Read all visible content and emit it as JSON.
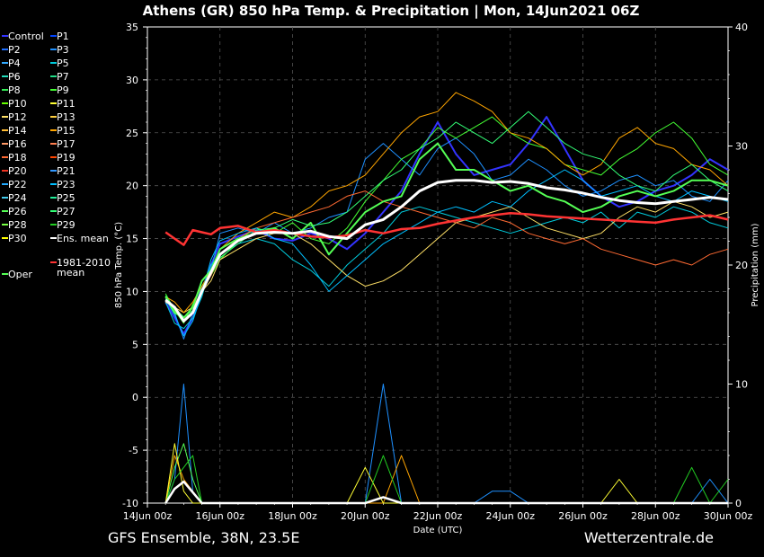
{
  "chart_data": {
    "type": "line",
    "title": "Athens  (GR)  850 hPa Temp. & Precipitation | Mon, 14Jun2021 06Z",
    "xlabel": "Date (UTC)",
    "ylabel": "850 hPa Temp. (°C)",
    "y2label": "Precipitation (mm)",
    "ylim": [
      -10,
      35
    ],
    "y2lim": [
      0,
      40
    ],
    "yticks": [
      "35",
      "30",
      "25",
      "20",
      "15",
      "10",
      "5",
      "0",
      "-5",
      "-10"
    ],
    "y2ticks": [
      "40",
      "30",
      "20",
      "10",
      "0"
    ],
    "xticks": [
      "14Jun 00z",
      "16Jun 00z",
      "18Jun 00z",
      "20Jun 00z",
      "22Jun 00z",
      "24Jun 00z",
      "26Jun 00z",
      "28Jun 00z",
      "30Jun 00z"
    ],
    "grid": true,
    "legend_position": "left",
    "legend": [
      {
        "label": "Control",
        "color": "#3333ff"
      },
      {
        "label": "P1",
        "color": "#0044ff"
      },
      {
        "label": "P2",
        "color": "#1f6fff"
      },
      {
        "label": "P3",
        "color": "#1e90ff"
      },
      {
        "label": "P4",
        "color": "#33aaff"
      },
      {
        "label": "P5",
        "color": "#00ccdd"
      },
      {
        "label": "P6",
        "color": "#22ddbb"
      },
      {
        "label": "P7",
        "color": "#22dd88"
      },
      {
        "label": "P8",
        "color": "#33ee55"
      },
      {
        "label": "P9",
        "color": "#44ff33"
      },
      {
        "label": "P10",
        "color": "#66ff00"
      },
      {
        "label": "P11",
        "color": "#ffff33"
      },
      {
        "label": "P12",
        "color": "#ffe066"
      },
      {
        "label": "P13",
        "color": "#ffd040"
      },
      {
        "label": "P14",
        "color": "#ffbb33"
      },
      {
        "label": "P15",
        "color": "#ffa500"
      },
      {
        "label": "P16",
        "color": "#ff9966"
      },
      {
        "label": "P17",
        "color": "#ff7f50"
      },
      {
        "label": "P18",
        "color": "#ff6a33"
      },
      {
        "label": "P19",
        "color": "#ff4500"
      },
      {
        "label": "P20",
        "color": "#ee3322"
      },
      {
        "label": "P21",
        "color": "#3399ff"
      },
      {
        "label": "P22",
        "color": "#22aaff"
      },
      {
        "label": "P23",
        "color": "#00bfff"
      },
      {
        "label": "P24",
        "color": "#44ccee"
      },
      {
        "label": "P25",
        "color": "#22ee99"
      },
      {
        "label": "P26",
        "color": "#55ff55"
      },
      {
        "label": "P27",
        "color": "#33ff77"
      },
      {
        "label": "P28",
        "color": "#77ff44"
      },
      {
        "label": "P29",
        "color": "#22cc22"
      },
      {
        "label": "P30",
        "color": "#ffff00"
      },
      {
        "label": "Ens. mean",
        "color": "#ffffff"
      },
      {
        "label": "1981-2010",
        "label2": "mean",
        "color": "#ff3333"
      },
      {
        "label": "Oper",
        "color": "#55ff55"
      }
    ],
    "x_days": [
      0.5,
      0.75,
      1,
      1.25,
      1.5,
      1.75,
      2,
      2.5,
      3,
      3.5,
      4,
      4.5,
      5,
      5.5,
      6,
      6.5,
      7,
      7.5,
      8,
      8.5,
      9,
      9.5,
      10,
      10.5,
      11,
      11.5,
      12,
      12.5,
      13,
      13.5,
      14,
      14.5,
      15,
      15.5,
      16
    ],
    "series": [
      {
        "name": "Ens. mean",
        "color": "#ffffff",
        "values": [
          9.2,
          8.5,
          7.2,
          8.0,
          10.0,
          11.8,
          13.5,
          14.8,
          15.5,
          15.6,
          15.5,
          15.7,
          15.2,
          15.0,
          16.3,
          16.8,
          18.0,
          19.5,
          20.3,
          20.5,
          20.5,
          20.3,
          20.4,
          20.2,
          19.8,
          19.6,
          19.3,
          18.9,
          18.6,
          18.4,
          18.3,
          18.5,
          18.7,
          18.9,
          18.7
        ]
      },
      {
        "name": "1981-2010 mean",
        "color": "#ff3333",
        "values": [
          15.6,
          15.0,
          14.4,
          15.8,
          15.6,
          15.4,
          16.0,
          16.2,
          15.6,
          15.8,
          15.5,
          15.2,
          15.1,
          15.3,
          15.8,
          15.5,
          15.9,
          16.0,
          16.4,
          16.7,
          17.0,
          17.2,
          17.4,
          17.3,
          17.1,
          17.0,
          16.9,
          16.8,
          16.7,
          16.6,
          16.5,
          16.8,
          17.0,
          17.2,
          16.8
        ]
      },
      {
        "name": "Oper",
        "color": "#55ff55",
        "values": [
          9.5,
          8.0,
          7.5,
          8.5,
          11.0,
          12.0,
          14.0,
          15.0,
          15.5,
          16.0,
          15.0,
          16.5,
          13.5,
          15.5,
          17.5,
          18.5,
          19.0,
          22.5,
          24.0,
          21.5,
          21.5,
          20.5,
          19.5,
          20.0,
          19.0,
          18.5,
          17.5,
          18.0,
          19.0,
          19.5,
          19.0,
          19.5,
          20.5,
          20.5,
          20.0
        ]
      },
      {
        "name": "Control",
        "color": "#3333ff",
        "values": [
          9.0,
          7.5,
          6.0,
          7.5,
          10.0,
          12.5,
          14.5,
          15.2,
          15.8,
          15.0,
          14.8,
          15.5,
          15.0,
          14.0,
          15.5,
          17.5,
          19.5,
          23.0,
          26.0,
          23.0,
          21.0,
          21.5,
          22.0,
          24.0,
          26.5,
          23.5,
          20.5,
          19.0,
          18.0,
          18.5,
          19.5,
          20.0,
          21.0,
          22.5,
          21.5
        ]
      },
      {
        "name": "P3",
        "color": "#1e90ff",
        "values": [
          9.5,
          8.0,
          5.5,
          8.0,
          10.5,
          12.0,
          15.5,
          16.0,
          15.5,
          16.5,
          15.5,
          16.0,
          17.0,
          17.5,
          22.5,
          24.0,
          22.5,
          21.0,
          23.5,
          24.5,
          23.0,
          20.5,
          21.0,
          22.5,
          21.5,
          20.0,
          19.0,
          19.5,
          20.5,
          21.0,
          20.0,
          20.5,
          19.0,
          18.5,
          20.5
        ]
      },
      {
        "name": "P5",
        "color": "#00ccdd",
        "values": [
          9.0,
          7.0,
          6.5,
          7.5,
          9.5,
          12.5,
          13.5,
          14.5,
          15.0,
          14.5,
          13.0,
          12.0,
          10.5,
          12.5,
          14.0,
          15.5,
          17.5,
          18.0,
          17.5,
          17.0,
          16.5,
          16.0,
          15.5,
          16.0,
          16.5,
          17.0,
          16.5,
          17.5,
          16.0,
          17.5,
          17.0,
          18.0,
          17.5,
          16.5,
          16.0
        ]
      },
      {
        "name": "P9",
        "color": "#44ff33",
        "values": [
          9.8,
          8.2,
          7.0,
          8.8,
          10.5,
          11.5,
          13.0,
          14.8,
          16.0,
          15.5,
          16.5,
          15.0,
          14.5,
          16.0,
          18.5,
          20.5,
          22.5,
          23.5,
          25.5,
          24.5,
          25.5,
          26.5,
          25.0,
          24.0,
          23.5,
          22.0,
          21.5,
          21.0,
          22.5,
          23.5,
          25.0,
          26.0,
          24.5,
          22.0,
          21.0
        ]
      },
      {
        "name": "P12",
        "color": "#ffe066",
        "values": [
          9.0,
          8.5,
          8.0,
          8.5,
          10.0,
          11.0,
          13.0,
          14.0,
          15.0,
          15.5,
          15.5,
          14.5,
          13.0,
          11.5,
          10.5,
          11.0,
          12.0,
          13.5,
          15.0,
          16.5,
          17.0,
          17.5,
          18.0,
          17.0,
          16.0,
          15.5,
          15.0,
          15.5,
          17.0,
          18.0,
          17.5,
          18.5,
          18.0,
          17.0,
          17.5
        ]
      },
      {
        "name": "P15",
        "color": "#ffa500",
        "values": [
          9.5,
          9.0,
          8.0,
          9.0,
          10.5,
          12.0,
          14.0,
          15.5,
          16.5,
          17.5,
          17.0,
          18.0,
          19.5,
          20.0,
          21.0,
          23.0,
          25.0,
          26.5,
          27.0,
          28.8,
          28.0,
          27.0,
          25.0,
          24.5,
          23.5,
          22.0,
          21.0,
          22.0,
          24.5,
          25.5,
          24.0,
          23.5,
          22.0,
          21.5,
          20.0
        ]
      },
      {
        "name": "P18",
        "color": "#ff6a33",
        "values": [
          9.2,
          8.0,
          7.5,
          8.5,
          10.0,
          11.5,
          13.5,
          15.0,
          16.0,
          16.5,
          17.0,
          17.5,
          18.0,
          19.0,
          19.5,
          18.5,
          18.0,
          17.5,
          17.0,
          16.5,
          16.0,
          17.0,
          16.5,
          15.5,
          15.0,
          14.5,
          15.0,
          14.0,
          13.5,
          13.0,
          12.5,
          13.0,
          12.5,
          13.5,
          14.0
        ]
      },
      {
        "name": "P23",
        "color": "#00bfff",
        "values": [
          9.3,
          7.8,
          5.8,
          7.2,
          9.8,
          13.0,
          14.8,
          15.5,
          16.0,
          15.0,
          14.5,
          12.5,
          10.0,
          11.5,
          13.0,
          14.5,
          15.5,
          16.5,
          17.5,
          18.0,
          17.5,
          18.5,
          18.0,
          19.5,
          20.5,
          21.5,
          20.5,
          19.0,
          19.5,
          20.0,
          19.0,
          18.5,
          19.5,
          19.0,
          18.5
        ]
      },
      {
        "name": "P27",
        "color": "#33ff77",
        "values": [
          9.6,
          8.4,
          7.6,
          8.2,
          10.2,
          11.8,
          13.2,
          14.5,
          15.8,
          16.0,
          16.8,
          16.2,
          16.5,
          17.5,
          19.0,
          20.5,
          21.5,
          23.5,
          24.5,
          26.0,
          25.0,
          24.0,
          25.5,
          27.0,
          25.5,
          24.0,
          23.0,
          22.5,
          21.0,
          20.0,
          19.5,
          21.0,
          22.0,
          20.5,
          19.5
        ]
      }
    ],
    "precip_series": [
      {
        "name": "P3",
        "color": "#1e90ff",
        "values": [
          0,
          2,
          10,
          1,
          0,
          0,
          0,
          0,
          0,
          0,
          0,
          0,
          0,
          0,
          0,
          10,
          0,
          0,
          0,
          0,
          0,
          1,
          1,
          0,
          0,
          0,
          0,
          0,
          0,
          0,
          0,
          0,
          0,
          2,
          0
        ]
      },
      {
        "name": "Oper",
        "color": "#55ff55",
        "values": [
          0,
          3,
          5,
          2,
          0,
          0,
          0,
          0,
          0,
          0,
          0,
          0,
          0,
          0,
          0,
          0,
          0,
          0,
          0,
          0,
          0,
          0,
          0,
          0,
          0,
          0,
          0,
          0,
          0,
          0,
          0,
          0,
          0,
          0,
          0
        ]
      },
      {
        "name": "P15",
        "color": "#ffa500",
        "values": [
          0,
          4,
          2,
          1,
          0,
          0,
          0,
          0,
          0,
          0,
          0,
          0,
          0,
          0,
          0,
          0,
          4,
          0,
          0,
          0,
          0,
          0,
          0,
          0,
          0,
          0,
          0,
          0,
          0,
          0,
          0,
          0,
          0,
          0,
          0
        ]
      },
      {
        "name": "P11",
        "color": "#ffff33",
        "values": [
          0,
          5,
          1,
          0,
          0,
          0,
          0,
          0,
          0,
          0,
          0,
          0,
          0,
          0,
          3,
          0,
          0,
          0,
          0,
          0,
          0,
          0,
          0,
          0,
          0,
          0,
          0,
          0,
          2,
          0,
          0,
          0,
          0,
          0,
          0
        ]
      },
      {
        "name": "P29",
        "color": "#22cc22",
        "values": [
          0,
          2,
          3,
          4,
          0,
          0,
          0,
          0,
          0,
          0,
          0,
          0,
          0,
          0,
          0,
          4,
          0,
          0,
          0,
          0,
          0,
          0,
          0,
          0,
          0,
          0,
          0,
          0,
          0,
          0,
          0,
          0,
          3,
          0,
          2
        ]
      },
      {
        "name": "Ens. mean",
        "color": "#ffffff",
        "values": [
          0,
          1.2,
          1.8,
          0.9,
          0,
          0,
          0,
          0,
          0,
          0,
          0,
          0,
          0,
          0,
          0,
          0.5,
          0,
          0,
          0,
          0,
          0,
          0,
          0,
          0,
          0,
          0,
          0,
          0,
          0,
          0,
          0,
          0,
          0,
          0,
          0
        ]
      }
    ]
  },
  "footer": {
    "left": "GFS Ensemble, 38N, 23.5E",
    "right": "Wetterzentrale.de"
  }
}
